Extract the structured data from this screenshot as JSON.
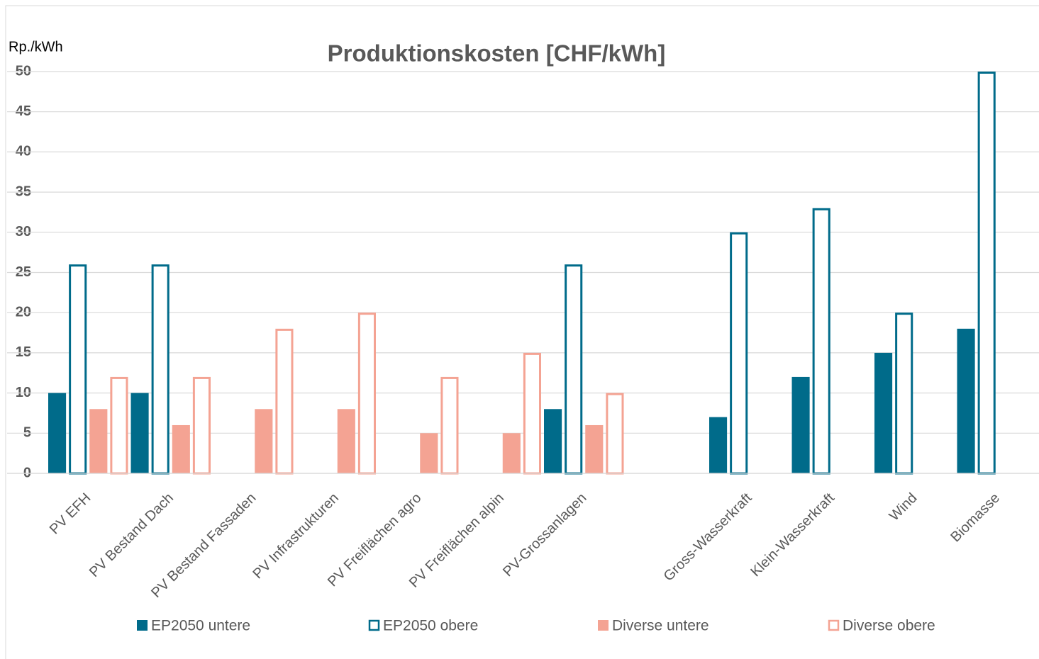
{
  "chart_data": {
    "type": "bar",
    "title": "Produktionskosten [CHF/kWh]",
    "y_axis_label": "Rp./kWh",
    "categories": [
      "PV EFH",
      "PV Bestand Dach",
      "PV Bestand Fassaden",
      "PV Infrastrukturen",
      "PV Freiflächen agro",
      "PV Freiflächen alpin",
      "PV-Grossanlagen",
      null,
      "Gross-Wasserkraft",
      "Klein-Wasserkraft",
      "Wind",
      "Biomasse"
    ],
    "series": [
      {
        "name": "EP2050 untere",
        "color": "#006b8a",
        "filled": true,
        "values": [
          10,
          10,
          null,
          null,
          null,
          null,
          8,
          null,
          7,
          12,
          15,
          18
        ]
      },
      {
        "name": "EP2050 obere",
        "color": "#006b8a",
        "filled": false,
        "values": [
          26,
          26,
          null,
          null,
          null,
          null,
          26,
          null,
          30,
          33,
          20,
          50
        ]
      },
      {
        "name": "Diverse untere",
        "color": "#f4a393",
        "filled": true,
        "values": [
          8,
          6,
          8,
          8,
          5,
          5,
          6,
          null,
          null,
          null,
          null,
          null
        ]
      },
      {
        "name": "Diverse obere",
        "color": "#f4a393",
        "filled": false,
        "values": [
          12,
          12,
          18,
          20,
          12,
          15,
          10,
          null,
          null,
          null,
          null,
          null
        ]
      }
    ],
    "ylim": [
      0,
      50
    ],
    "yticks": [
      0,
      5,
      10,
      15,
      20,
      25,
      30,
      35,
      40,
      45,
      50
    ],
    "grid": true,
    "legend": "bottom"
  }
}
